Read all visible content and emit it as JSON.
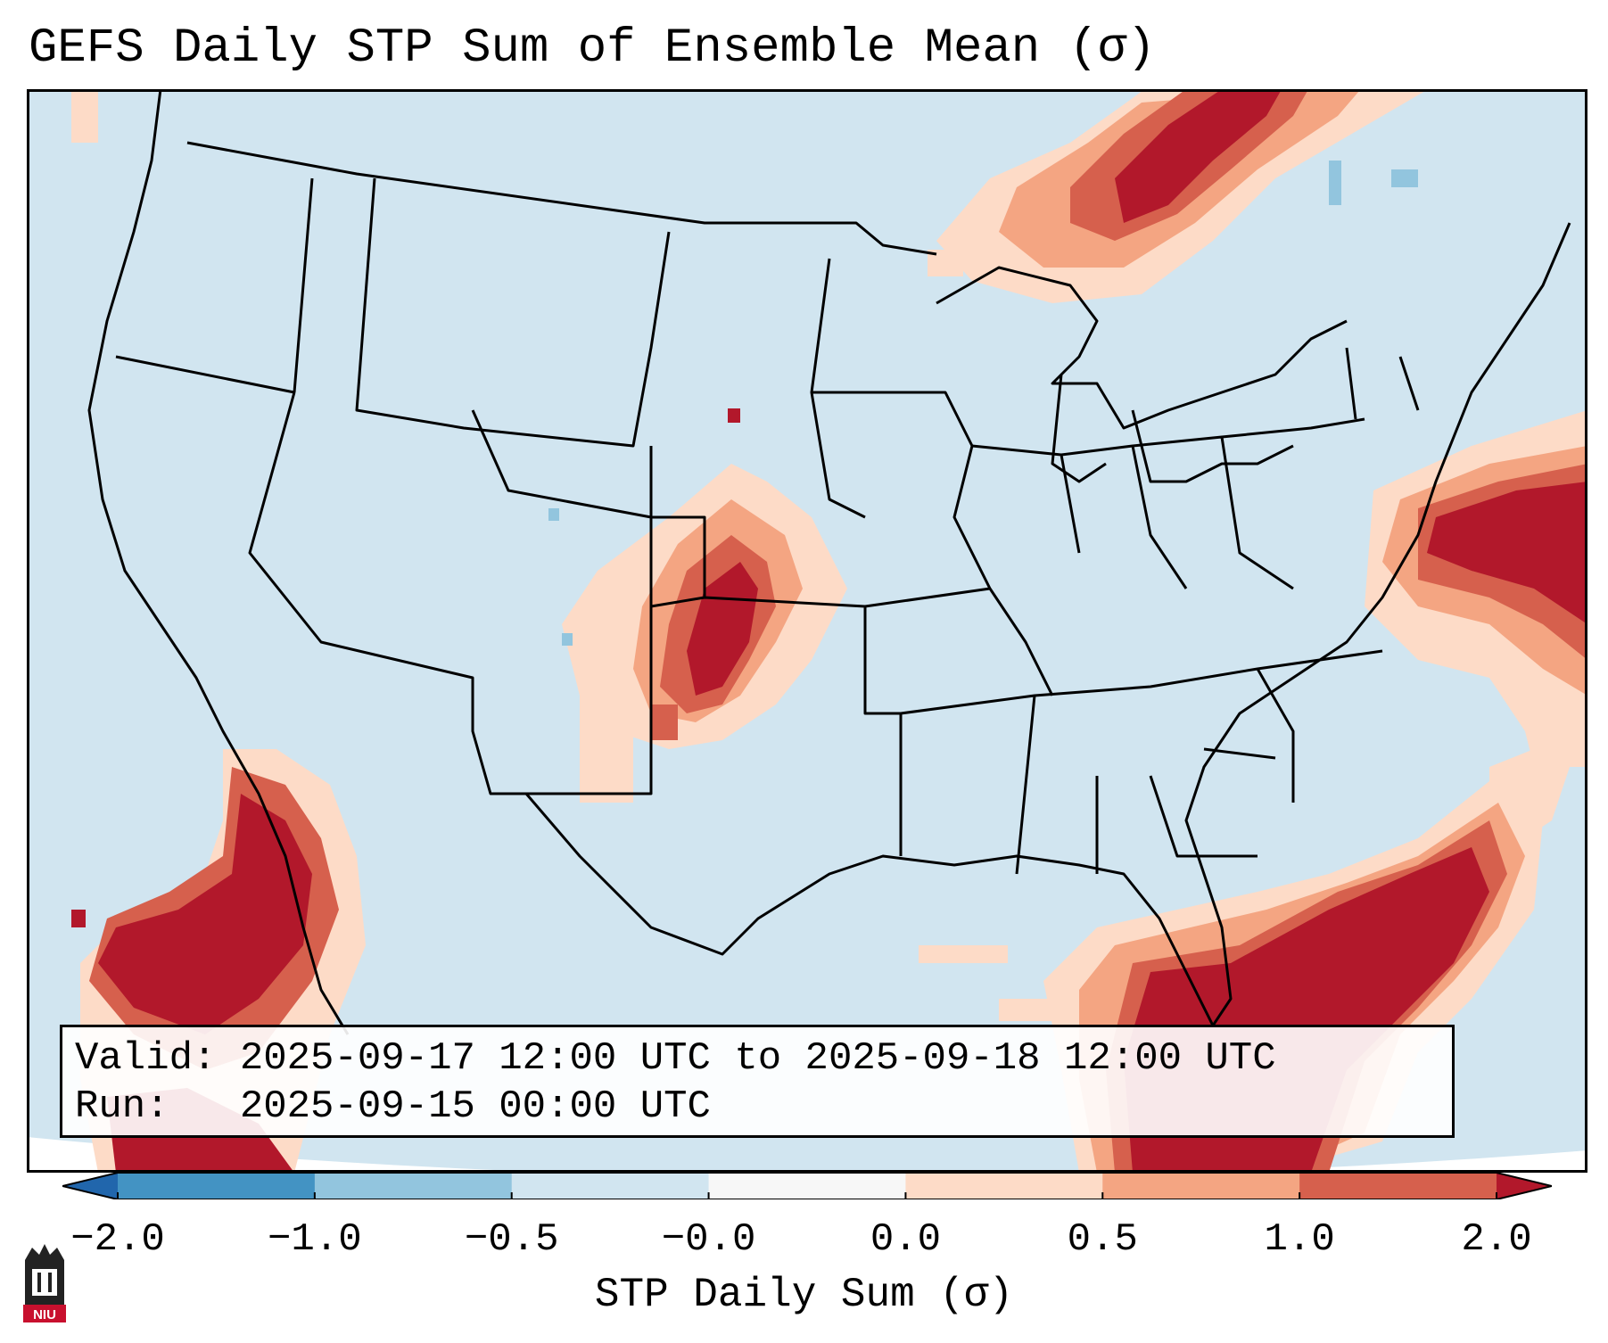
{
  "title": "GEFS Daily STP Sum of Ensemble Mean (σ)",
  "info_box": {
    "valid_line": "Valid: 2025-09-17 12:00 UTC to 2025-09-18 12:00 UTC",
    "run_line": "Run:   2025-09-15 00:00 UTC"
  },
  "colorbar": {
    "label": "STP Daily Sum (σ)",
    "ticks": [
      "−2.0",
      "−1.0",
      "−0.5",
      "−0.0",
      "0.0",
      "0.5",
      "1.0",
      "2.0"
    ],
    "colors": [
      "#2166ac",
      "#4393c3",
      "#92c5de",
      "#d1e5f0",
      "#f7f7f7",
      "#fddbc7",
      "#f4a582",
      "#d6604d",
      "#b2182b"
    ],
    "extend": "both"
  },
  "map": {
    "region": "CONUS",
    "background_color": "#d1e5f0",
    "boundary_color": "#000000",
    "anomaly_regions": [
      {
        "name": "Upper Great Lakes / Ontario",
        "max_sigma": 2.0
      },
      {
        "name": "Central High Plains (CO/KS/NE)",
        "max_sigma": 2.0
      },
      {
        "name": "Western Atlantic off Mid-Atlantic coast",
        "max_sigma": 2.0
      },
      {
        "name": "Eastern Gulf / Florida / Bahamas",
        "max_sigma": 2.0
      },
      {
        "name": "Baja California / Eastern Pacific",
        "max_sigma": 2.0
      }
    ]
  },
  "logo": {
    "text": "NIU",
    "color": "#c8102e"
  }
}
